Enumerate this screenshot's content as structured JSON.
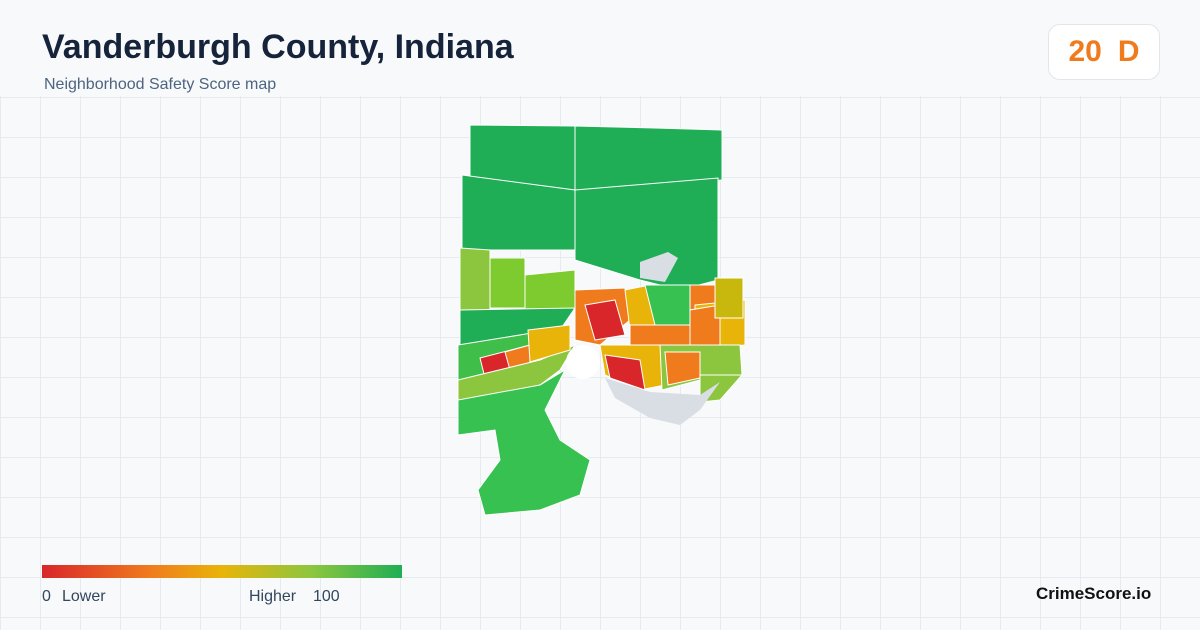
{
  "header": {
    "title": "Vanderburgh County, Indiana",
    "subtitle": "Neighborhood Safety Score map"
  },
  "score": {
    "value": 20,
    "grade": "D"
  },
  "legend": {
    "min": 0,
    "min_label": "Lower",
    "max_label": "Higher",
    "max": 100
  },
  "brand": "CrimeScore.io"
}
